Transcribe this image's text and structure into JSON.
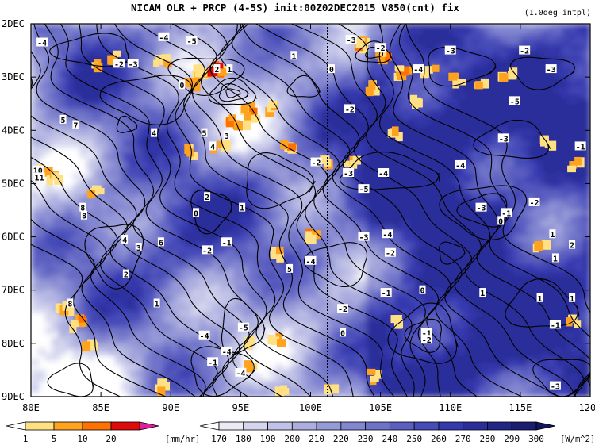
{
  "chart_data": {
    "type": "heatmap",
    "title": "NICAM  OLR + PRCP (4-5S) init:00Z02DEC2015 V850(cnt) fix",
    "subtitle": "(1.0deg_intpl)",
    "x_axis": {
      "range": [
        80,
        120
      ],
      "ticks": [
        {
          "value": 80,
          "label": "80E"
        },
        {
          "value": 85,
          "label": "85E"
        },
        {
          "value": 90,
          "label": "90E"
        },
        {
          "value": 95,
          "label": "95E"
        },
        {
          "value": 100,
          "label": "100E"
        },
        {
          "value": 105,
          "label": "105E"
        },
        {
          "value": 110,
          "label": "110E"
        },
        {
          "value": 115,
          "label": "115E"
        },
        {
          "value": 120,
          "label": "120E"
        }
      ]
    },
    "y_axis": {
      "range": [
        "2DEC",
        "9DEC"
      ],
      "reversed": true,
      "ticks": [
        {
          "value": 2,
          "label": "2DEC"
        },
        {
          "value": 3,
          "label": "3DEC"
        },
        {
          "value": 4,
          "label": "4DEC"
        },
        {
          "value": 5,
          "label": "5DEC"
        },
        {
          "value": 6,
          "label": "6DEC"
        },
        {
          "value": 7,
          "label": "7DEC"
        },
        {
          "value": 8,
          "label": "8DEC"
        },
        {
          "value": 9,
          "label": "9DEC"
        }
      ]
    },
    "reference_line": {
      "x": 101.2,
      "style": "dotted"
    },
    "precip_colorbar": {
      "labels": [
        "1",
        "5",
        "10",
        "20"
      ],
      "unit": "[mm/hr]",
      "colors": [
        "#ffffff",
        "#ffe083",
        "#ffa21e",
        "#ff7200",
        "#e00a0a",
        "#e0209a"
      ]
    },
    "olr_colorbar": {
      "labels": [
        "170",
        "180",
        "190",
        "200",
        "210",
        "220",
        "230",
        "240",
        "250",
        "260",
        "270",
        "280",
        "290",
        "300"
      ],
      "unit": "[W/m^2]",
      "colors": [
        "#ffffff",
        "#ebebf5",
        "#d5d6ee",
        "#c1c2e7",
        "#acaedf",
        "#979ad8",
        "#8386d0",
        "#6f73c8",
        "#5b5fc0",
        "#474cb8",
        "#3439ae",
        "#2b2e9a",
        "#222686",
        "#1a1d70",
        "#12155c"
      ]
    },
    "contour_labels": [
      {
        "x": 89.5,
        "y": 2.25,
        "t": "-4"
      },
      {
        "x": 91.5,
        "y": 2.32,
        "t": "-5"
      },
      {
        "x": 80.8,
        "y": 2.35,
        "t": "-4"
      },
      {
        "x": 90.8,
        "y": 3.15,
        "t": "0"
      },
      {
        "x": 93.3,
        "y": 2.85,
        "t": "2"
      },
      {
        "x": 94.2,
        "y": 2.85,
        "t": "1"
      },
      {
        "x": 86.3,
        "y": 2.75,
        "t": "-2"
      },
      {
        "x": 87.3,
        "y": 2.75,
        "t": "-3"
      },
      {
        "x": 98.8,
        "y": 2.6,
        "t": "1"
      },
      {
        "x": 101.5,
        "y": 2.85,
        "t": "0"
      },
      {
        "x": 102.9,
        "y": 2.3,
        "t": "-3"
      },
      {
        "x": 105.0,
        "y": 2.45,
        "t": "-2"
      },
      {
        "x": 110.0,
        "y": 2.5,
        "t": "-3"
      },
      {
        "x": 115.3,
        "y": 2.5,
        "t": "-2"
      },
      {
        "x": 107.7,
        "y": 2.85,
        "t": "-4"
      },
      {
        "x": 114.6,
        "y": 3.45,
        "t": "-5"
      },
      {
        "x": 117.2,
        "y": 2.85,
        "t": "-3"
      },
      {
        "x": 82.3,
        "y": 3.8,
        "t": "5"
      },
      {
        "x": 83.2,
        "y": 3.9,
        "t": "7"
      },
      {
        "x": 88.8,
        "y": 4.05,
        "t": "4"
      },
      {
        "x": 92.4,
        "y": 4.05,
        "t": "5"
      },
      {
        "x": 94.0,
        "y": 4.1,
        "t": "3"
      },
      {
        "x": 93.0,
        "y": 4.3,
        "t": "4"
      },
      {
        "x": 102.8,
        "y": 3.6,
        "t": "-2"
      },
      {
        "x": 80.5,
        "y": 4.75,
        "t": "10"
      },
      {
        "x": 80.6,
        "y": 4.88,
        "t": "11"
      },
      {
        "x": 100.4,
        "y": 4.6,
        "t": "-2"
      },
      {
        "x": 102.7,
        "y": 4.8,
        "t": "-3"
      },
      {
        "x": 105.2,
        "y": 4.8,
        "t": "-4"
      },
      {
        "x": 110.7,
        "y": 4.65,
        "t": "-4"
      },
      {
        "x": 113.8,
        "y": 4.15,
        "t": "-3"
      },
      {
        "x": 119.3,
        "y": 4.3,
        "t": "-1"
      },
      {
        "x": 103.8,
        "y": 5.1,
        "t": "-5"
      },
      {
        "x": 92.6,
        "y": 5.25,
        "t": "2"
      },
      {
        "x": 91.8,
        "y": 5.55,
        "t": "0"
      },
      {
        "x": 95.1,
        "y": 5.45,
        "t": "1"
      },
      {
        "x": 83.7,
        "y": 5.45,
        "t": "8"
      },
      {
        "x": 83.8,
        "y": 5.6,
        "t": "8"
      },
      {
        "x": 112.2,
        "y": 5.45,
        "t": "-3"
      },
      {
        "x": 114.0,
        "y": 5.55,
        "t": "-1"
      },
      {
        "x": 113.6,
        "y": 5.7,
        "t": "0"
      },
      {
        "x": 116.0,
        "y": 5.35,
        "t": "-2"
      },
      {
        "x": 86.7,
        "y": 6.05,
        "t": "4"
      },
      {
        "x": 87.7,
        "y": 6.2,
        "t": "3"
      },
      {
        "x": 89.3,
        "y": 6.1,
        "t": "6"
      },
      {
        "x": 92.6,
        "y": 6.25,
        "t": "-2"
      },
      {
        "x": 94.0,
        "y": 6.1,
        "t": "-1"
      },
      {
        "x": 103.8,
        "y": 6.0,
        "t": "-3"
      },
      {
        "x": 105.5,
        "y": 5.95,
        "t": "-4"
      },
      {
        "x": 105.7,
        "y": 6.3,
        "t": "-2"
      },
      {
        "x": 117.3,
        "y": 5.95,
        "t": "1"
      },
      {
        "x": 118.7,
        "y": 6.15,
        "t": "2"
      },
      {
        "x": 117.5,
        "y": 6.4,
        "t": "1"
      },
      {
        "x": 100.0,
        "y": 6.45,
        "t": "-4"
      },
      {
        "x": 98.5,
        "y": 6.6,
        "t": "5"
      },
      {
        "x": 86.8,
        "y": 6.7,
        "t": "2"
      },
      {
        "x": 105.4,
        "y": 7.05,
        "t": "-1"
      },
      {
        "x": 108.0,
        "y": 7.0,
        "t": "0"
      },
      {
        "x": 116.4,
        "y": 7.15,
        "t": "1"
      },
      {
        "x": 118.7,
        "y": 7.15,
        "t": "1"
      },
      {
        "x": 89.0,
        "y": 7.25,
        "t": "1"
      },
      {
        "x": 82.8,
        "y": 7.25,
        "t": "8"
      },
      {
        "x": 102.3,
        "y": 7.35,
        "t": "-2"
      },
      {
        "x": 95.2,
        "y": 7.7,
        "t": "-5"
      },
      {
        "x": 102.3,
        "y": 7.8,
        "t": "0"
      },
      {
        "x": 112.3,
        "y": 7.05,
        "t": "1"
      },
      {
        "x": 108.3,
        "y": 7.8,
        "t": "-1"
      },
      {
        "x": 108.3,
        "y": 7.93,
        "t": "-2"
      },
      {
        "x": 117.5,
        "y": 7.65,
        "t": "-1"
      },
      {
        "x": 92.4,
        "y": 7.85,
        "t": "-4"
      },
      {
        "x": 94.0,
        "y": 8.15,
        "t": "-4"
      },
      {
        "x": 93.0,
        "y": 8.35,
        "t": "-1"
      },
      {
        "x": 95.0,
        "y": 8.55,
        "t": "-4"
      },
      {
        "x": 117.5,
        "y": 8.8,
        "t": "-3"
      }
    ]
  }
}
